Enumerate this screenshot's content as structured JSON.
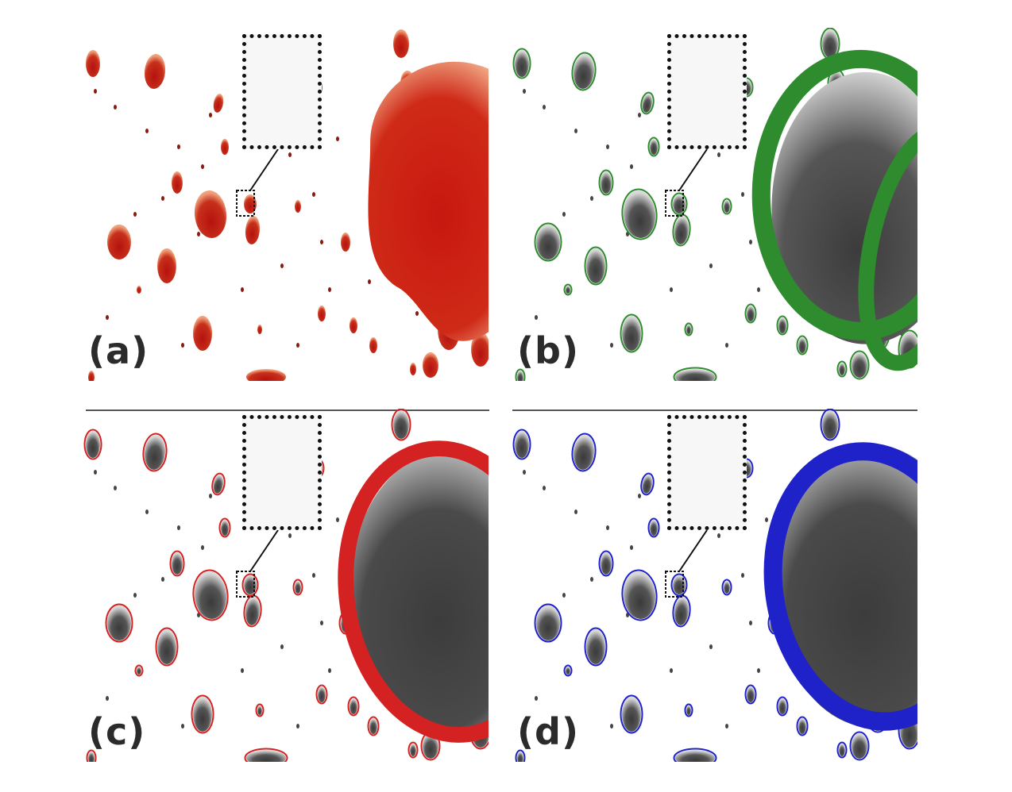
{
  "figure": {
    "panels": [
      {
        "id": "a",
        "label": "(a)",
        "mode": "raw",
        "outline_color": "#c0261c"
      },
      {
        "id": "b",
        "label": "(b)",
        "mode": "ellipses",
        "outline_color": "#2e8b2e"
      },
      {
        "id": "c",
        "label": "(c)",
        "mode": "ellipses",
        "outline_color": "#d42222"
      },
      {
        "id": "d",
        "label": "(d)",
        "mode": "ellipses",
        "outline_color": "#1e22c8"
      }
    ],
    "colors": {
      "droplet_red_dark": "#b5120d",
      "droplet_red_light": "#f0a07a",
      "droplet_gray_dark": "#3a3a3a",
      "droplet_gray_light": "#d8d8d8",
      "inset_border": "#111111"
    }
  }
}
